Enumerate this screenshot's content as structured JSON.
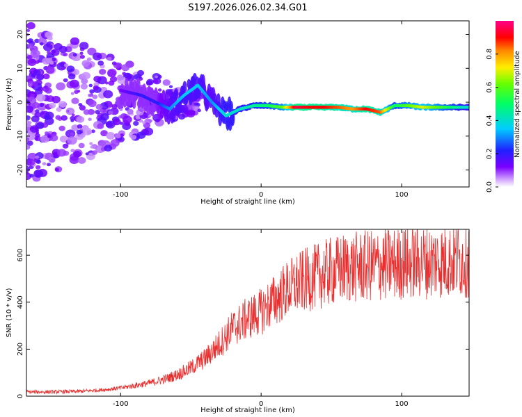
{
  "title": "S197.2026.026.02.34.G01",
  "colors": {
    "snr_line": "#e83030",
    "ridge_low": "#5b00e6",
    "ridge_high": "#ff1a1a",
    "noise": "#7b2ff2"
  },
  "chart_data": [
    {
      "type": "heatmap",
      "xlabel": "Height of straight line (km)",
      "ylabel": "Frequency (Hz)",
      "xlim": [
        -167,
        148
      ],
      "ylim": [
        -25,
        24
      ],
      "x_ticks": [
        "-100",
        "0",
        "100"
      ],
      "y_ticks": [
        "20",
        "10",
        "0",
        "-10",
        "-20"
      ],
      "colorbar": {
        "label": "Normalized spectral amplitude",
        "range": [
          0,
          1
        ],
        "ticks": [
          "0.0",
          "0.2",
          "0.4",
          "0.6",
          "0.8"
        ]
      },
      "ridge": {
        "description": "Frequency of dominant spectral ridge vs height",
        "x": [
          -95,
          -85,
          -75,
          -65,
          -55,
          -45,
          -35,
          -25,
          -15,
          -5,
          5,
          15,
          25,
          35,
          45,
          55,
          65,
          75,
          85,
          95,
          105,
          115,
          125,
          135,
          145
        ],
        "frequency": [
          3,
          2,
          0,
          -2,
          2,
          5,
          0,
          -4,
          -2,
          -1,
          -1,
          -1.5,
          -1.5,
          -1.5,
          -1.5,
          -1.5,
          -2,
          -2,
          -3,
          -1,
          -1,
          -1.5,
          -1.5,
          -1.5,
          -1.5
        ],
        "amplitude": [
          0.15,
          0.2,
          0.2,
          0.3,
          0.35,
          0.35,
          0.3,
          0.4,
          0.4,
          0.45,
          0.5,
          0.6,
          0.95,
          0.9,
          0.9,
          0.85,
          0.8,
          0.9,
          0.85,
          0.5,
          0.6,
          0.7,
          0.6,
          0.5,
          0.4
        ]
      }
    },
    {
      "type": "line",
      "xlabel": "Height of straight line (km)",
      "ylabel": "SNR (10 * v/v)",
      "xlim": [
        -167,
        148
      ],
      "ylim": [
        0,
        710
      ],
      "x_ticks": [
        "-100",
        "0",
        "100"
      ],
      "y_ticks": [
        "0",
        "200",
        "400",
        "600"
      ],
      "series": [
        {
          "name": "SNR",
          "x": [
            -167,
            -150,
            -130,
            -110,
            -100,
            -90,
            -80,
            -70,
            -60,
            -50,
            -40,
            -30,
            -20,
            -10,
            0,
            10,
            20,
            30,
            40,
            50,
            60,
            70,
            80,
            90,
            100,
            110,
            120,
            130,
            140,
            148
          ],
          "values": [
            18,
            18,
            20,
            28,
            35,
            45,
            55,
            70,
            90,
            120,
            160,
            220,
            290,
            330,
            360,
            410,
            460,
            490,
            510,
            530,
            545,
            550,
            555,
            560,
            565,
            570,
            572,
            575,
            578,
            580
          ]
        }
      ]
    }
  ]
}
